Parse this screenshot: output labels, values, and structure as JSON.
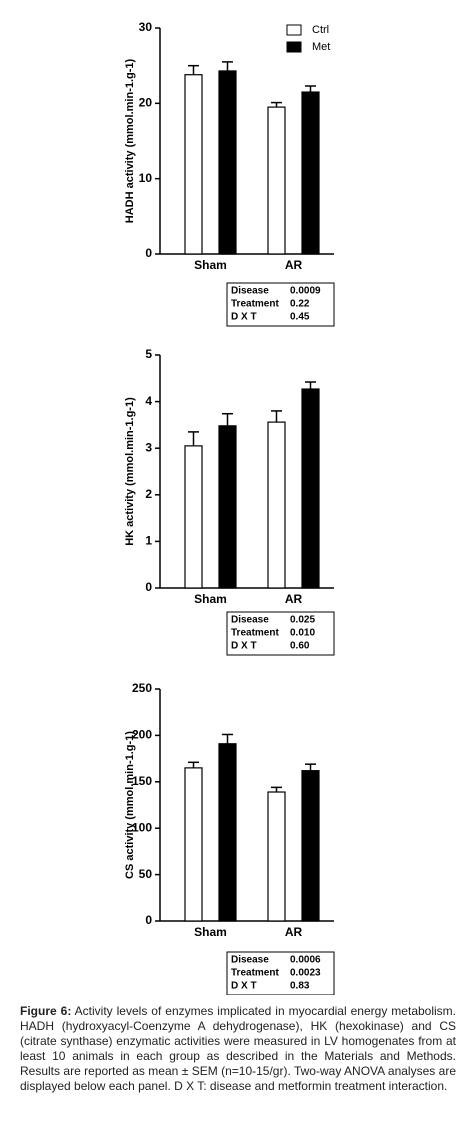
{
  "chart_data": [
    {
      "type": "bar",
      "ylabel": "HADH activity (mmol.min-1.g-1)",
      "categories": [
        "Sham",
        "AR"
      ],
      "series": [
        {
          "name": "Ctrl",
          "color": "#ffffff",
          "values": [
            23.8,
            19.5
          ],
          "errors": [
            1.2,
            0.6
          ]
        },
        {
          "name": "Met",
          "color": "#000000",
          "values": [
            24.3,
            21.5
          ],
          "errors": [
            1.2,
            0.8
          ]
        }
      ],
      "ylim": [
        0,
        30
      ],
      "yticks": [
        0,
        10,
        20,
        30
      ],
      "legend": "upper right",
      "stats": [
        [
          "Disease",
          "0.0009"
        ],
        [
          "Treatment",
          "0.22"
        ],
        [
          "D X T",
          "0.45"
        ]
      ]
    },
    {
      "type": "bar",
      "ylabel": "HK activity (mmol.min-1.g-1)",
      "categories": [
        "Sham",
        "AR"
      ],
      "series": [
        {
          "color": "#ffffff",
          "values": [
            3.05,
            3.56
          ],
          "errors": [
            0.3,
            0.24
          ]
        },
        {
          "color": "#000000",
          "values": [
            3.48,
            4.27
          ],
          "errors": [
            0.26,
            0.15
          ]
        }
      ],
      "ylim": [
        0,
        5
      ],
      "yticks": [
        0,
        1,
        2,
        3,
        4,
        5
      ],
      "stats": [
        [
          "Disease",
          "0.025"
        ],
        [
          "Treatment",
          "0.010"
        ],
        [
          "D X T",
          "0.60"
        ]
      ]
    },
    {
      "type": "bar",
      "ylabel": "CS activity (mmol.min-1.g-1)",
      "categories": [
        "Sham",
        "AR"
      ],
      "series": [
        {
          "color": "#ffffff",
          "values": [
            165,
            139
          ],
          "errors": [
            6,
            5
          ]
        },
        {
          "color": "#000000",
          "values": [
            191,
            162
          ],
          "errors": [
            10,
            7
          ]
        }
      ],
      "ylim": [
        0,
        250
      ],
      "yticks": [
        0,
        50,
        100,
        150,
        200,
        250
      ],
      "stats": [
        [
          "Disease",
          "0.0006"
        ],
        [
          "Treatment",
          "0.0023"
        ],
        [
          "D X T",
          "0.83"
        ]
      ]
    }
  ],
  "caption": {
    "label": "Figure 6:",
    "text": "Activity levels of enzymes implicated in myocardial energy metabolism. HADH (hydroxyacyl-Coenzyme A dehydrogenase), HK (hexokinase) and CS (citrate synthase) enzymatic activities were measured in LV homogenates from at least 10 animals in each group as described in the Materials and Methods. Results are reported as mean ± SEM (n=10-15/gr). Two-way ANOVA analyses are displayed below each panel. D X T: disease and metformin treatment interaction."
  }
}
